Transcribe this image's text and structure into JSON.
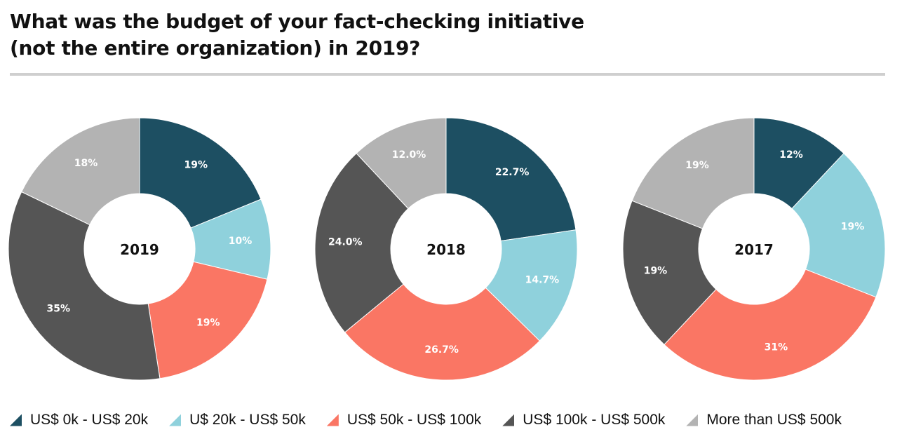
{
  "title_lines": [
    "What was the budget of your fact-checking initiative",
    "(not the entire organization) in 2019?"
  ],
  "colors": {
    "US$ 0k - US$ 20k": "#1d4f62",
    "U$ 20k - US$ 50k": "#8fd1dc",
    "US$ 50k - US$ 100k": "#fa7664",
    "US$ 100k - US$ 500k": "#555555",
    "More than US$ 500k": "#b3b3b3"
  },
  "legend": [
    "US$ 0k - US$ 20k",
    "U$ 20k - US$ 50k",
    "US$ 50k - US$ 100k",
    "US$ 100k - US$ 500k",
    "More than US$ 500k"
  ],
  "chart_data": [
    {
      "type": "pie",
      "variant": "donut",
      "center_label": "2019",
      "categories": [
        "US$ 0k - US$ 20k",
        "U$ 20k - US$ 50k",
        "US$ 50k - US$ 100k",
        "US$ 100k - US$ 500k",
        "More than US$ 500k"
      ],
      "values": [
        19,
        10,
        19,
        35,
        18
      ],
      "labels": [
        "19%",
        "10%",
        "19%",
        "35%",
        "18%"
      ]
    },
    {
      "type": "pie",
      "variant": "donut",
      "center_label": "2018",
      "categories": [
        "US$ 0k - US$ 20k",
        "U$ 20k - US$ 50k",
        "US$ 50k - US$ 100k",
        "US$ 100k - US$ 500k",
        "More than US$ 500k"
      ],
      "values": [
        22.7,
        14.7,
        26.7,
        24.0,
        12.0
      ],
      "labels": [
        "22.7%",
        "14.7%",
        "26.7%",
        "24.0%",
        "12.0%"
      ]
    },
    {
      "type": "pie",
      "variant": "donut",
      "center_label": "2017",
      "categories": [
        "US$ 0k - US$ 20k",
        "U$ 20k - US$ 50k",
        "US$ 50k - US$ 100k",
        "US$ 100k - US$ 500k",
        "More than US$ 500k"
      ],
      "values": [
        12,
        19,
        31,
        19,
        19
      ],
      "labels": [
        "12%",
        "19%",
        "31%",
        "19%",
        "19%"
      ]
    }
  ]
}
